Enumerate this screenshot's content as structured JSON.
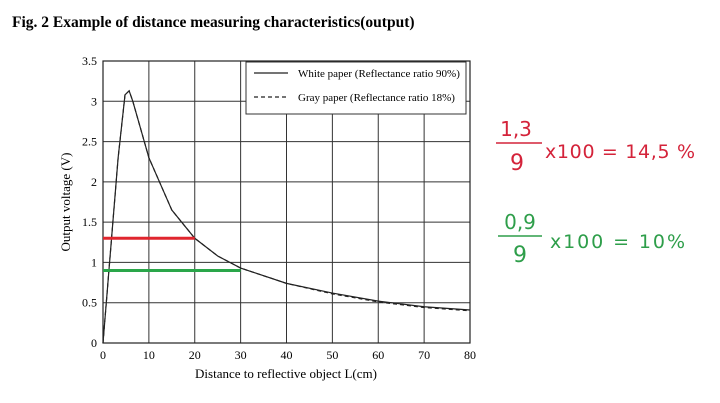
{
  "chart_data": {
    "type": "line",
    "title": "Fig. 2 Example of distance measuring characteristics(output)",
    "xlabel": "Distance to reflective object L(cm)",
    "ylabel": "Output voltage (V)",
    "xlim": [
      0,
      80
    ],
    "ylim": [
      0,
      3.5
    ],
    "xticks": [
      "0",
      "10",
      "20",
      "30",
      "40",
      "50",
      "60",
      "70",
      "80"
    ],
    "yticks": [
      "0",
      "0.5",
      "1",
      "1.5",
      "2",
      "2.5",
      "3",
      "3.5"
    ],
    "grid": true,
    "legend_position": "top-right",
    "series": [
      {
        "name": "White paper (Reflectance ratio 90%)",
        "style": "solid",
        "x": [
          0,
          3.3,
          4.8,
          5.7,
          6.5,
          10,
          15,
          20,
          25,
          30,
          40,
          50,
          60,
          70,
          80
        ],
        "y": [
          0,
          2.3,
          3.08,
          3.13,
          3.0,
          2.3,
          1.65,
          1.3,
          1.08,
          0.93,
          0.74,
          0.62,
          0.52,
          0.45,
          0.41
        ]
      },
      {
        "name": "Gray paper (Reflectance ratio 18%)",
        "style": "dashed",
        "x": [
          0,
          3.3,
          4.8,
          5.7,
          6.5,
          10,
          15,
          20,
          25,
          30,
          40,
          50,
          60,
          70,
          80
        ],
        "y": [
          0,
          2.3,
          3.08,
          3.13,
          3.0,
          2.3,
          1.65,
          1.3,
          1.08,
          0.93,
          0.74,
          0.61,
          0.51,
          0.44,
          0.4
        ]
      }
    ],
    "annotations": [
      {
        "type": "hline",
        "y": 1.3,
        "x_end": 20,
        "color": "#e0262e"
      },
      {
        "type": "hline",
        "y": 0.9,
        "x_end": 30,
        "color": "#2aa64a"
      }
    ]
  },
  "handwritten_notes": [
    {
      "numerator": "1,3",
      "denominator": "9",
      "rest": "x100 = 14,5 %",
      "color": "#d4233a"
    },
    {
      "numerator": "0,9",
      "denominator": "9",
      "rest": "x100 = 10%",
      "color": "#2e9e4a"
    }
  ]
}
